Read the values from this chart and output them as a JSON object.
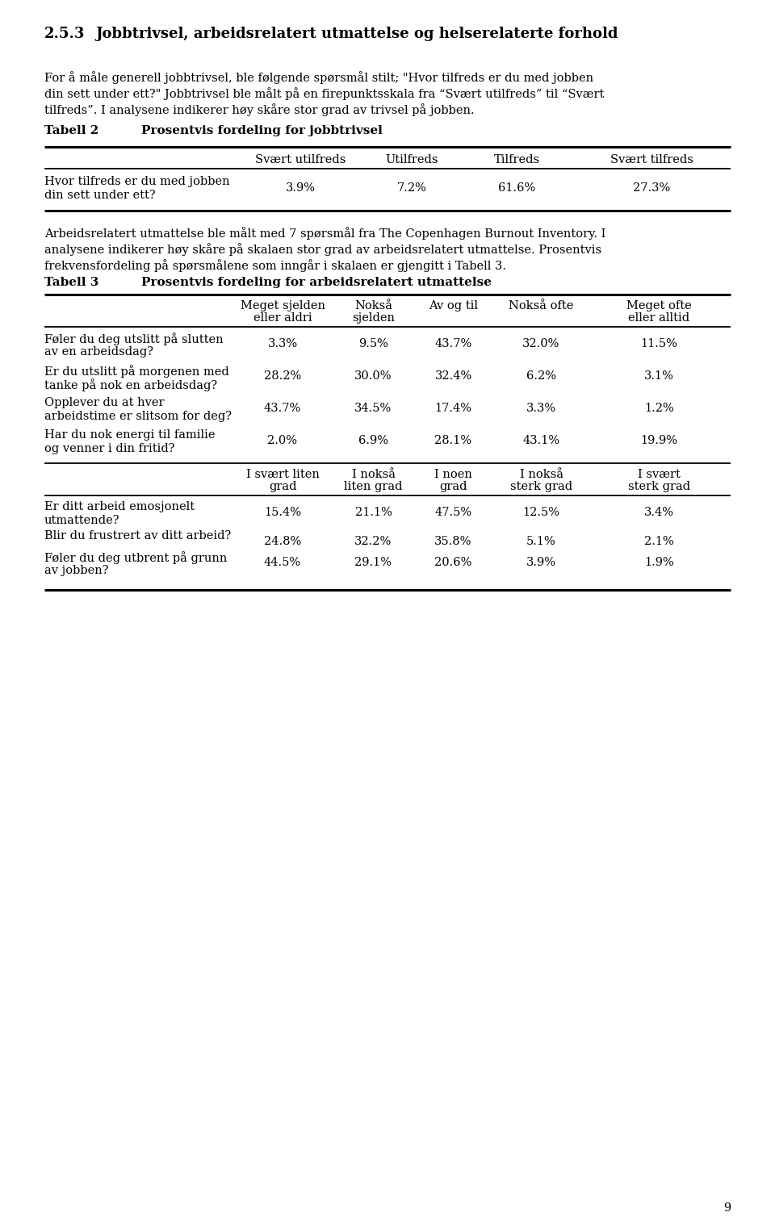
{
  "page_number": "9",
  "section_number": "2.5.3",
  "section_title": "Jobbtrivsel, arbeidsrelatert utmattelse og helserelaterte forhold",
  "para1_lines": [
    "For å måle generell jobbtrivsel, ble følgende spørsmål stilt; \"Hvor tilfreds er du med jobben",
    "din sett under ett?\" Jobbtrivsel ble målt på en firepunktsskala fra “Svært utilfreds” til “Svært",
    "tilfreds”. I analysene indikerer høy skåre stor grad av trivsel på jobben."
  ],
  "table2_label": "Tabell 2",
  "table2_title": "Prosentvis fordeling for jobbtrivsel",
  "table2_col_headers": [
    "Svært utilfreds",
    "Utilfreds",
    "Tilfreds",
    "Svært tilfreds"
  ],
  "table2_row_label_lines": [
    "Hvor tilfreds er du med jobben",
    "din sett under ett?"
  ],
  "table2_row_values": [
    "3.9%",
    "7.2%",
    "61.6%",
    "27.3%"
  ],
  "para2_lines": [
    "Arbeidsrelatert utmattelse ble målt med 7 spørsmål fra The Copenhagen Burnout Inventory. I",
    "analysene indikerer høy skåre på skalaen stor grad av arbeidsrelatert utmattelse. Prosentvis",
    "frekvensfordeling på spørsmålene som inngår i skalaen er gjengitt i Tabell 3."
  ],
  "table3_label": "Tabell 3",
  "table3_title": "Prosentvis fordeling for arbeidsrelatert utmattelse",
  "table3_col_headers_top": [
    [
      "Meget sjelden",
      "eller aldri"
    ],
    [
      "Nokså",
      "sjelden"
    ],
    [
      "Av og til",
      ""
    ],
    [
      "Nokså ofte",
      ""
    ],
    [
      "Meget ofte",
      "eller alltid"
    ]
  ],
  "table3_rows_top": [
    [
      [
        "Føler du deg utslitt på slutten",
        "av en arbeidsdag?"
      ],
      "3.3%",
      "9.5%",
      "43.7%",
      "32.0%",
      "11.5%"
    ],
    [
      [
        "Er du utslitt på morgenen med",
        "tanke på nok en arbeidsdag?"
      ],
      "28.2%",
      "30.0%",
      "32.4%",
      "6.2%",
      "3.1%"
    ],
    [
      [
        "Opplever du at hver",
        "arbeidstime er slitsom for deg?"
      ],
      "43.7%",
      "34.5%",
      "17.4%",
      "3.3%",
      "1.2%"
    ],
    [
      [
        "Har du nok energi til familie",
        "og venner i din fritid?"
      ],
      "2.0%",
      "6.9%",
      "28.1%",
      "43.1%",
      "19.9%"
    ]
  ],
  "table3_col_headers_bot": [
    [
      "I svært liten",
      "grad"
    ],
    [
      "I nokså",
      "liten grad"
    ],
    [
      "I noen",
      "grad"
    ],
    [
      "I nokså",
      "sterk grad"
    ],
    [
      "I svært",
      "sterk grad"
    ]
  ],
  "table3_rows_bot": [
    [
      [
        "Er ditt arbeid emosjonelt",
        "utmattende?"
      ],
      "15.4%",
      "21.1%",
      "47.5%",
      "12.5%",
      "3.4%"
    ],
    [
      [
        "Blir du frustrert av ditt arbeid?",
        ""
      ],
      "24.8%",
      "32.2%",
      "35.8%",
      "5.1%",
      "2.1%"
    ],
    [
      [
        "Føler du deg utbrent på grunn",
        "av jobben?"
      ],
      "44.5%",
      "29.1%",
      "20.6%",
      "3.9%",
      "1.9%"
    ]
  ]
}
